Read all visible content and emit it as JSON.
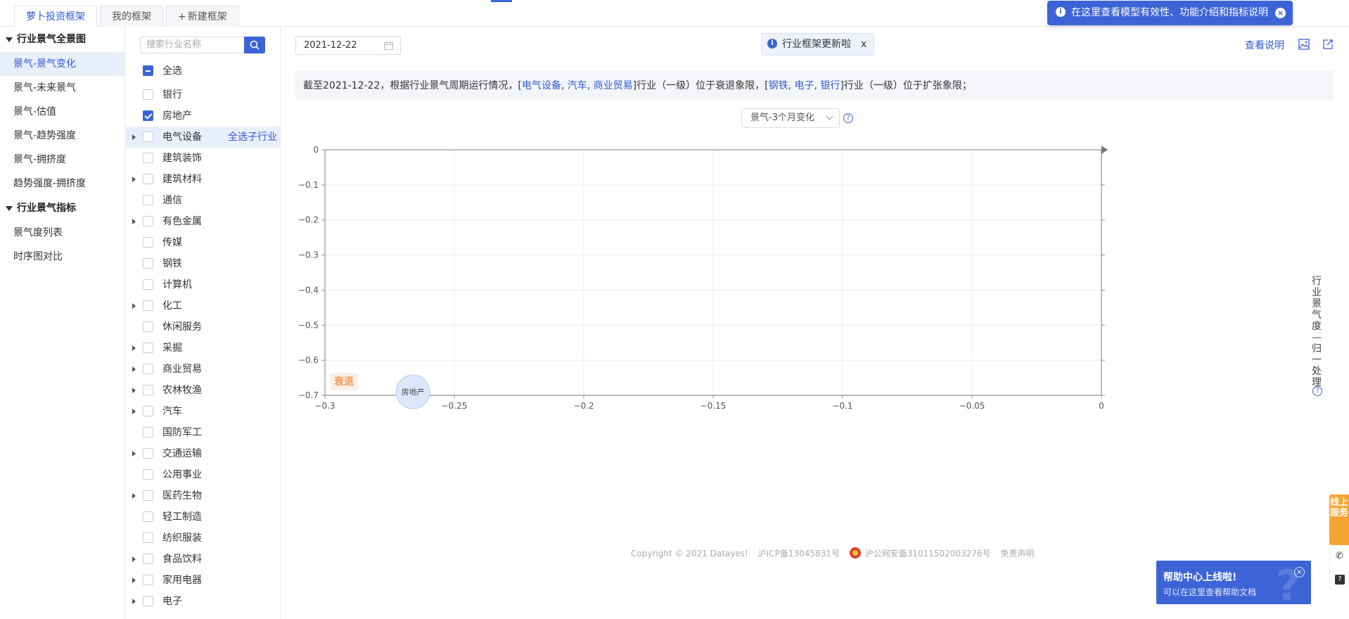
{
  "tabs": [
    {
      "label": "萝卜投资框架",
      "active": true
    },
    {
      "label": "我的框架",
      "active": false
    },
    {
      "label": "新建框架",
      "prefix": "+",
      "active": false
    }
  ],
  "leftnav": {
    "groups": [
      {
        "title": "行业景气全景图",
        "items": [
          {
            "label": "景气-景气变化",
            "active": true
          },
          {
            "label": "景气-未来景气"
          },
          {
            "label": "景气-估值"
          },
          {
            "label": "景气-趋势强度"
          },
          {
            "label": "景气-拥挤度"
          },
          {
            "label": "趋势强度-拥挤度"
          }
        ]
      },
      {
        "title": "行业景气指标",
        "items": [
          {
            "label": "景气度列表"
          },
          {
            "label": "时序图对比"
          }
        ]
      }
    ]
  },
  "industry": {
    "search_placeholder": "搜索行业名称",
    "select_all": "全选",
    "select_children": "全选子行业",
    "items": [
      {
        "label": "银行",
        "checked": false,
        "expandable": false
      },
      {
        "label": "房地产",
        "checked": true,
        "expandable": false
      },
      {
        "label": "电气设备",
        "checked": false,
        "expandable": true,
        "highlight": true
      },
      {
        "label": "建筑装饰",
        "checked": false,
        "expandable": false
      },
      {
        "label": "建筑材料",
        "checked": false,
        "expandable": true
      },
      {
        "label": "通信",
        "checked": false,
        "expandable": false
      },
      {
        "label": "有色金属",
        "checked": false,
        "expandable": true
      },
      {
        "label": "传媒",
        "checked": false,
        "expandable": false
      },
      {
        "label": "钢铁",
        "checked": false,
        "expandable": false
      },
      {
        "label": "计算机",
        "checked": false,
        "expandable": false
      },
      {
        "label": "化工",
        "checked": false,
        "expandable": true
      },
      {
        "label": "休闲服务",
        "checked": false,
        "expandable": false
      },
      {
        "label": "采掘",
        "checked": false,
        "expandable": true
      },
      {
        "label": "商业贸易",
        "checked": false,
        "expandable": true
      },
      {
        "label": "农林牧渔",
        "checked": false,
        "expandable": true
      },
      {
        "label": "汽车",
        "checked": false,
        "expandable": true
      },
      {
        "label": "国防军工",
        "checked": false,
        "expandable": false
      },
      {
        "label": "交通运输",
        "checked": false,
        "expandable": true
      },
      {
        "label": "公用事业",
        "checked": false,
        "expandable": false
      },
      {
        "label": "医药生物",
        "checked": false,
        "expandable": true
      },
      {
        "label": "轻工制造",
        "checked": false,
        "expandable": false
      },
      {
        "label": "纺织服装",
        "checked": false,
        "expandable": false
      },
      {
        "label": "食品饮料",
        "checked": false,
        "expandable": true
      },
      {
        "label": "家用电器",
        "checked": false,
        "expandable": true
      },
      {
        "label": "电子",
        "checked": false,
        "expandable": true
      }
    ]
  },
  "main": {
    "date": "2021-12-22",
    "notice": "行业框架更新啦",
    "notice_close": "x",
    "view_desc": "查看说明",
    "summary": {
      "p1": "截至2021-12-22，根据行业景气周期运行情况，[",
      "recession": [
        "电气设备",
        "汽车",
        "商业贸易"
      ],
      "p2": "]行业（一级）位于衰退象限，[",
      "expansion": [
        "钢铁",
        "电子",
        "银行"
      ],
      "p3": "]行业（一级）位于扩张象限；",
      "sep": ", "
    },
    "selector": "景气-3个月变化",
    "right_axis_label": "行业景气度—归一处理"
  },
  "chart_data": {
    "type": "scatter",
    "xlim": [
      -0.3,
      0
    ],
    "ylim": [
      -0.7,
      0
    ],
    "x_ticks": [
      "−0.3",
      "−0.25",
      "−0.2",
      "−0.15",
      "−0.1",
      "−0.05",
      "0"
    ],
    "y_ticks": [
      "0",
      "−0.1",
      "−0.2",
      "−0.3",
      "−0.4",
      "−0.5",
      "−0.6",
      "−0.7"
    ],
    "grid": true,
    "quadrant_label": "衰退",
    "points": [
      {
        "label": "房地产",
        "x": -0.266,
        "y": -0.69
      }
    ],
    "colors": {
      "point_fill": "#dde7fb",
      "point_stroke": "#b8cbf3",
      "quadrant_bg": "#fbeee2",
      "quadrant_text": "#ef9d5c"
    }
  },
  "footer": {
    "copyright": "Copyright © 2021 Datayes!",
    "icp": "沪ICP备13045831号",
    "police": "沪公网安备31011502003276号",
    "disclaimer": "免责声明"
  },
  "tip_top": {
    "text": "在这里查看模型有效性、功能介绍和指标说明"
  },
  "help": {
    "title": "帮助中心上线啦!",
    "subtitle": "可以在这里查看帮助文档",
    "bigq": "?"
  },
  "side": {
    "online": "线上服务"
  }
}
